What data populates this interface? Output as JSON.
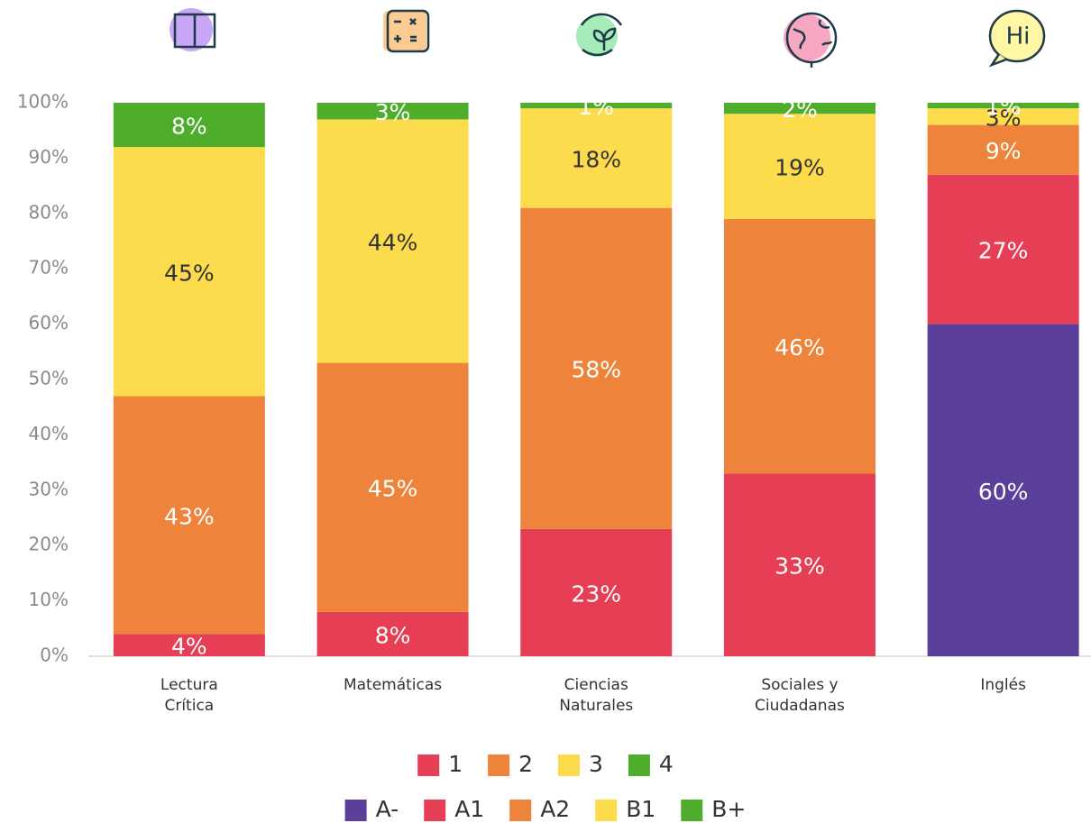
{
  "chart_data": {
    "type": "bar",
    "stacked": true,
    "categories": [
      [
        "Lectura",
        "Crítica"
      ],
      [
        "Matemáticas"
      ],
      [
        "Ciencias",
        "Naturales"
      ],
      [
        "Sociales y",
        "Ciudadanas"
      ],
      [
        "Inglés"
      ]
    ],
    "ylim": [
      0,
      100
    ],
    "yticks": [
      {
        "value": 0,
        "label": "0%"
      },
      {
        "value": 10,
        "label": "10%"
      },
      {
        "value": 20,
        "label": "20%"
      },
      {
        "value": 30,
        "label": "30%"
      },
      {
        "value": 40,
        "label": "40%"
      },
      {
        "value": 50,
        "label": "50%"
      },
      {
        "value": 60,
        "label": "60%"
      },
      {
        "value": 70,
        "label": "70%"
      },
      {
        "value": 80,
        "label": "80%"
      },
      {
        "value": 90,
        "label": "90%"
      },
      {
        "value": 100,
        "label": "100%"
      }
    ],
    "series": [
      {
        "name": "1",
        "color": "#e63e54",
        "values": [
          4,
          8,
          23,
          33,
          null
        ],
        "value_labels": [
          "4%",
          "8%",
          "23%",
          "33%",
          null
        ]
      },
      {
        "name": "2",
        "color": "#ee843c",
        "values": [
          43,
          45,
          58,
          46,
          null
        ],
        "value_labels": [
          "43%",
          "45%",
          "58%",
          "46%",
          null
        ]
      },
      {
        "name": "3",
        "color": "#fcdc4d",
        "values": [
          45,
          44,
          18,
          19,
          null
        ],
        "value_labels": [
          "45%",
          "44%",
          "18%",
          "19%",
          null
        ]
      },
      {
        "name": "4",
        "color": "#4fad2c",
        "values": [
          8,
          3,
          1,
          2,
          null
        ],
        "value_labels": [
          "8%",
          "3%",
          "1%",
          "2%",
          null
        ]
      },
      {
        "name": "A-",
        "color": "#5b409b",
        "values": [
          null,
          null,
          null,
          null,
          60
        ],
        "value_labels": [
          null,
          null,
          null,
          null,
          "60%"
        ]
      },
      {
        "name": "A1",
        "color": "#e63e54",
        "values": [
          null,
          null,
          null,
          null,
          27
        ],
        "value_labels": [
          null,
          null,
          null,
          null,
          "27%"
        ]
      },
      {
        "name": "A2",
        "color": "#ee843c",
        "values": [
          null,
          null,
          null,
          null,
          9
        ],
        "value_labels": [
          null,
          null,
          null,
          null,
          "9%"
        ]
      },
      {
        "name": "B1",
        "color": "#fcdc4d",
        "values": [
          null,
          null,
          null,
          null,
          3
        ],
        "value_labels": [
          null,
          null,
          null,
          null,
          "3%"
        ]
      },
      {
        "name": "B+",
        "color": "#4fad2c",
        "values": [
          null,
          null,
          null,
          null,
          1
        ],
        "value_labels": [
          null,
          null,
          null,
          null,
          "1%"
        ]
      }
    ]
  }
}
